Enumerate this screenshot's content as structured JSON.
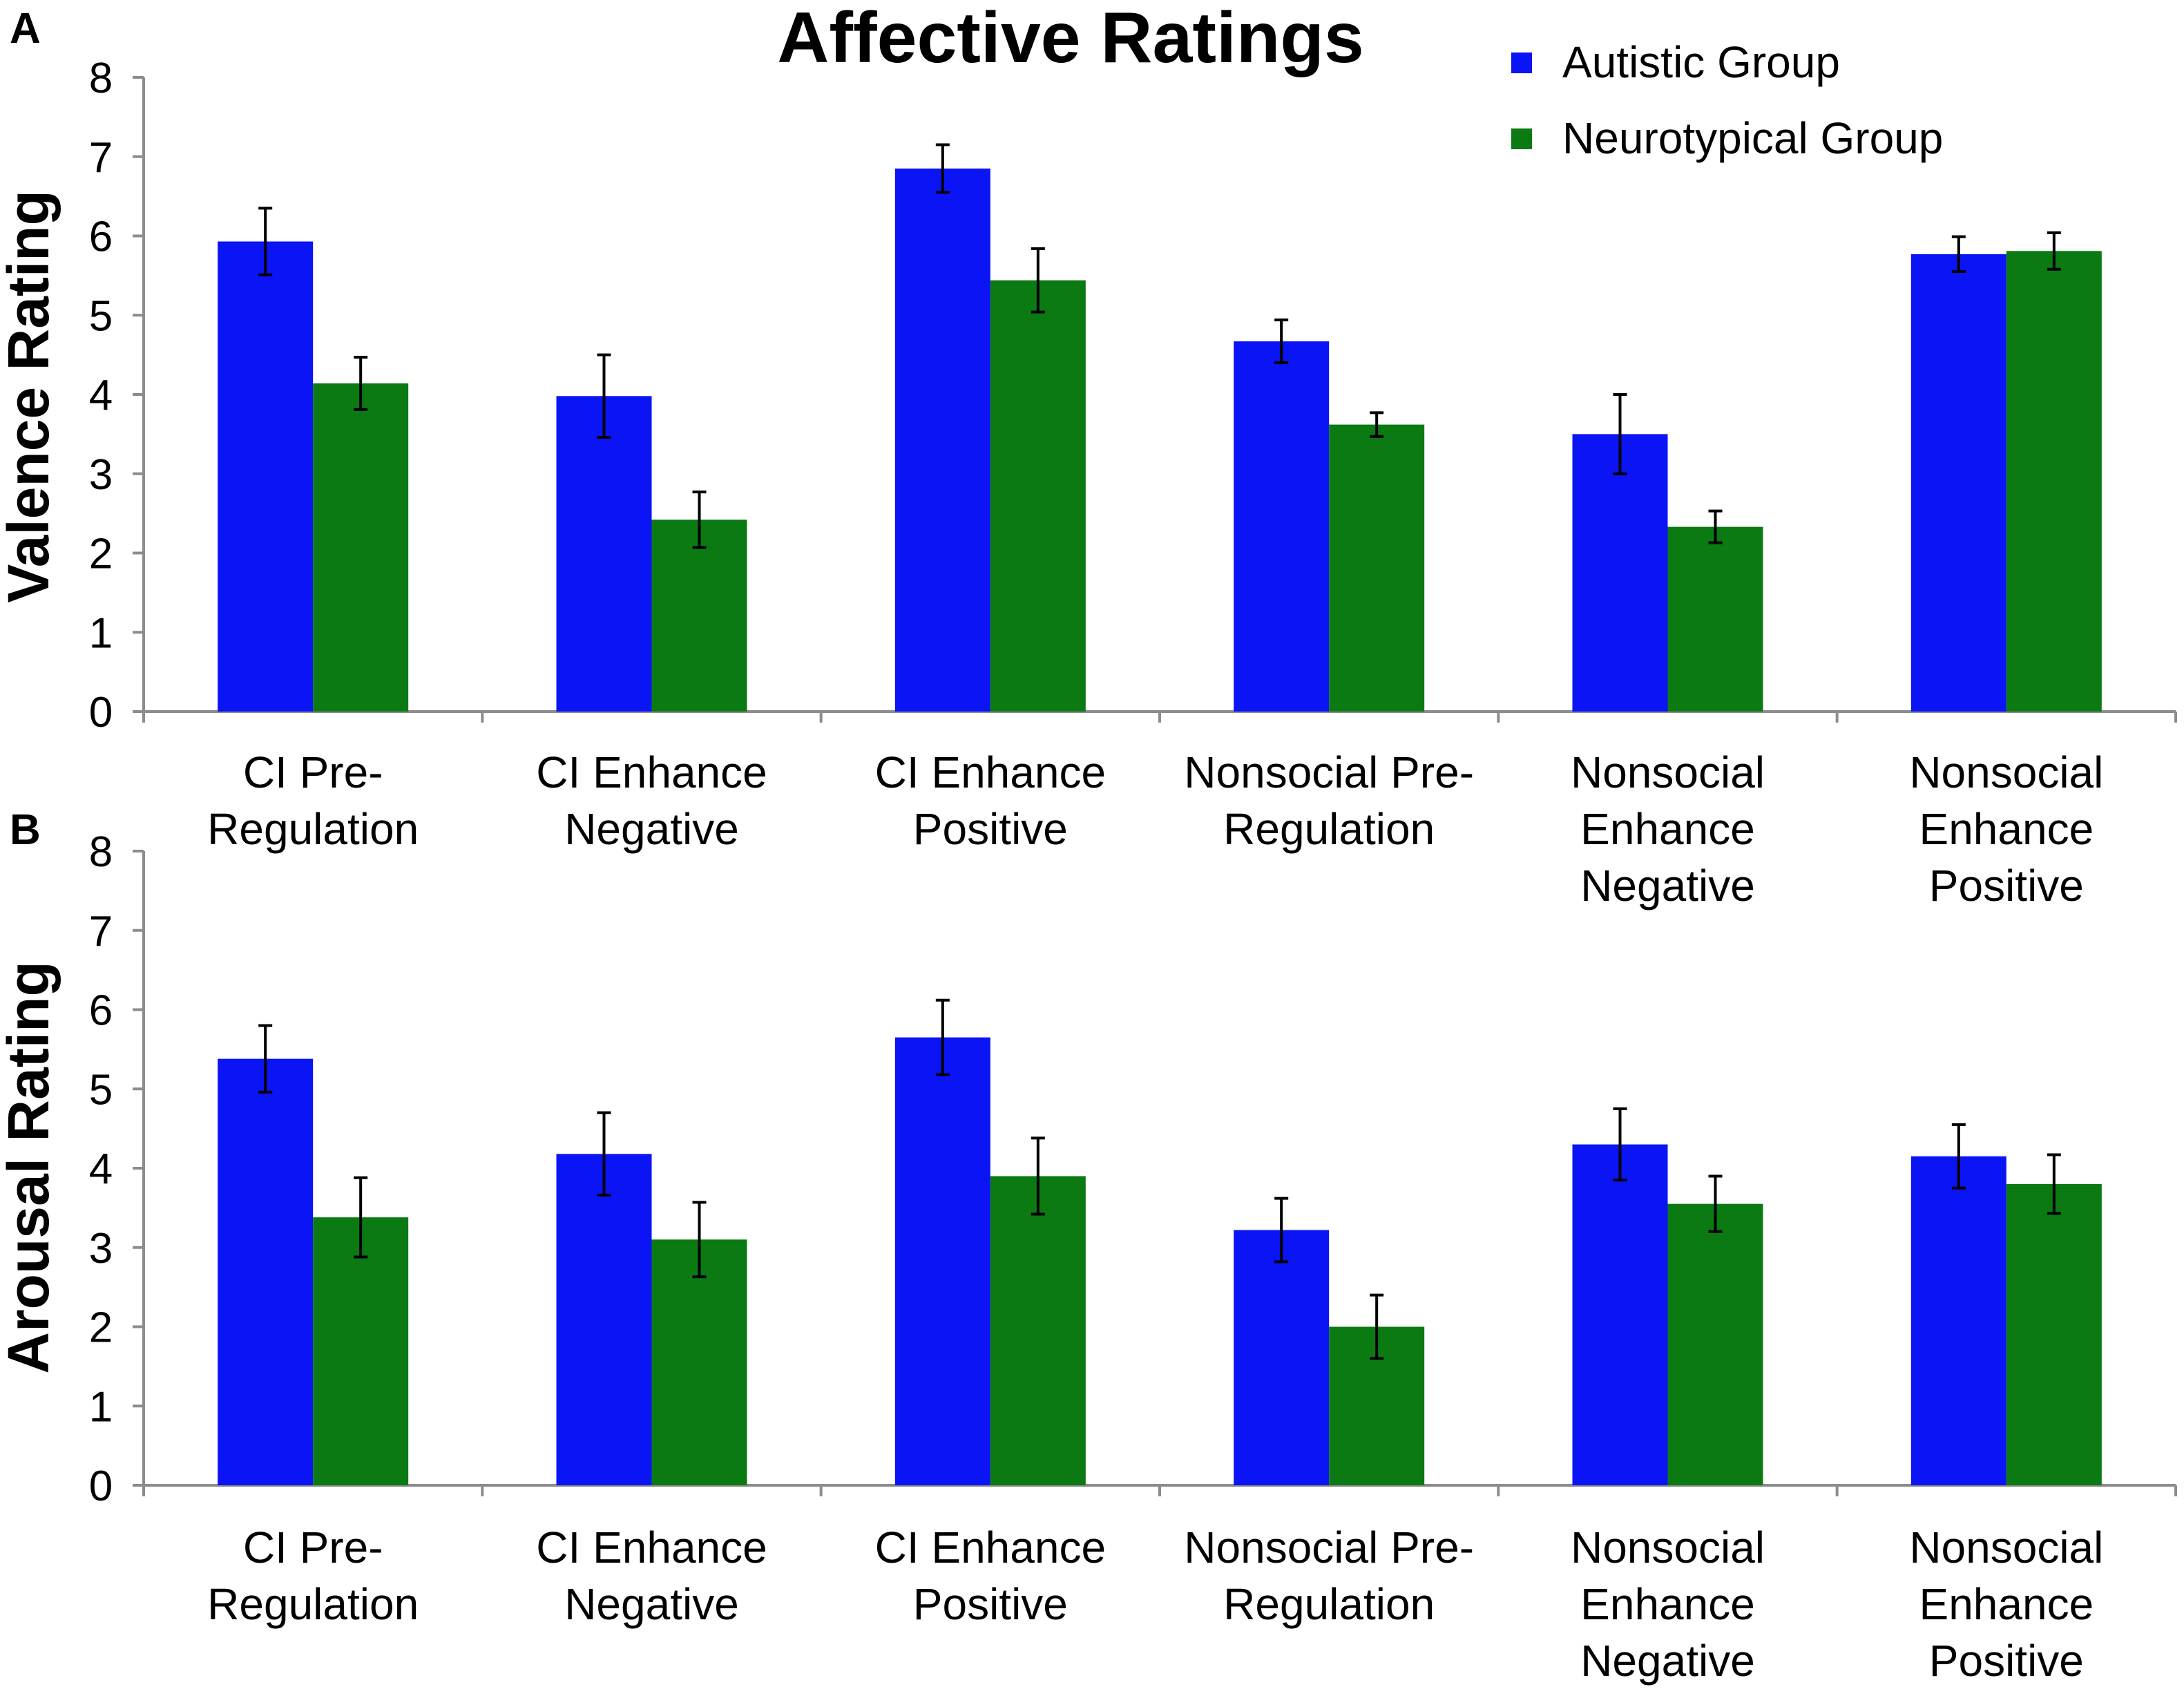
{
  "chart_data": [
    {
      "panel": "A",
      "type": "bar",
      "title": "Affective Ratings",
      "ylabel": "Valence Rating",
      "xlabel": "",
      "ylim": [
        0,
        8
      ],
      "yticks": [
        0,
        1,
        2,
        3,
        4,
        5,
        6,
        7,
        8
      ],
      "categories": [
        [
          "CI Pre-",
          "Regulation"
        ],
        [
          "CI Enhance",
          "Negative"
        ],
        [
          "CI Enhance",
          "Positive"
        ],
        [
          "Nonsocial Pre-",
          "Regulation"
        ],
        [
          "Nonsocial",
          "Enhance",
          "Negative"
        ],
        [
          "Nonsocial",
          "Enhance",
          "Positive"
        ]
      ],
      "series": [
        {
          "name": "Autistic Group",
          "color": "#0a14f5",
          "values": [
            5.93,
            3.98,
            6.85,
            4.67,
            3.5,
            5.77
          ],
          "errors": [
            0.42,
            0.52,
            0.3,
            0.27,
            0.5,
            0.22
          ]
        },
        {
          "name": "Neurotypical Group",
          "color": "#0b7a12",
          "values": [
            4.14,
            2.42,
            5.44,
            3.62,
            2.33,
            5.81
          ],
          "errors": [
            0.33,
            0.35,
            0.4,
            0.15,
            0.2,
            0.23
          ]
        }
      ],
      "legend": "top-right"
    },
    {
      "panel": "B",
      "type": "bar",
      "title": "",
      "ylabel": "Arousal Rating",
      "xlabel": "",
      "ylim": [
        0,
        8
      ],
      "yticks": [
        0,
        1,
        2,
        3,
        4,
        5,
        6,
        7,
        8
      ],
      "categories": [
        [
          "CI Pre-",
          "Regulation"
        ],
        [
          "CI Enhance",
          "Negative"
        ],
        [
          "CI Enhance",
          "Positive"
        ],
        [
          "Nonsocial Pre-",
          "Regulation"
        ],
        [
          "Nonsocial",
          "Enhance",
          "Negative"
        ],
        [
          "Nonsocial",
          "Enhance",
          "Positive"
        ]
      ],
      "series": [
        {
          "name": "Autistic Group",
          "color": "#0a14f5",
          "values": [
            5.38,
            4.18,
            5.65,
            3.22,
            4.3,
            4.15
          ],
          "errors": [
            0.42,
            0.52,
            0.47,
            0.4,
            0.45,
            0.4
          ]
        },
        {
          "name": "Neurotypical Group",
          "color": "#0b7a12",
          "values": [
            3.38,
            3.1,
            3.9,
            2.0,
            3.55,
            3.8
          ],
          "errors": [
            0.5,
            0.47,
            0.48,
            0.4,
            0.35,
            0.37
          ]
        }
      ]
    }
  ]
}
